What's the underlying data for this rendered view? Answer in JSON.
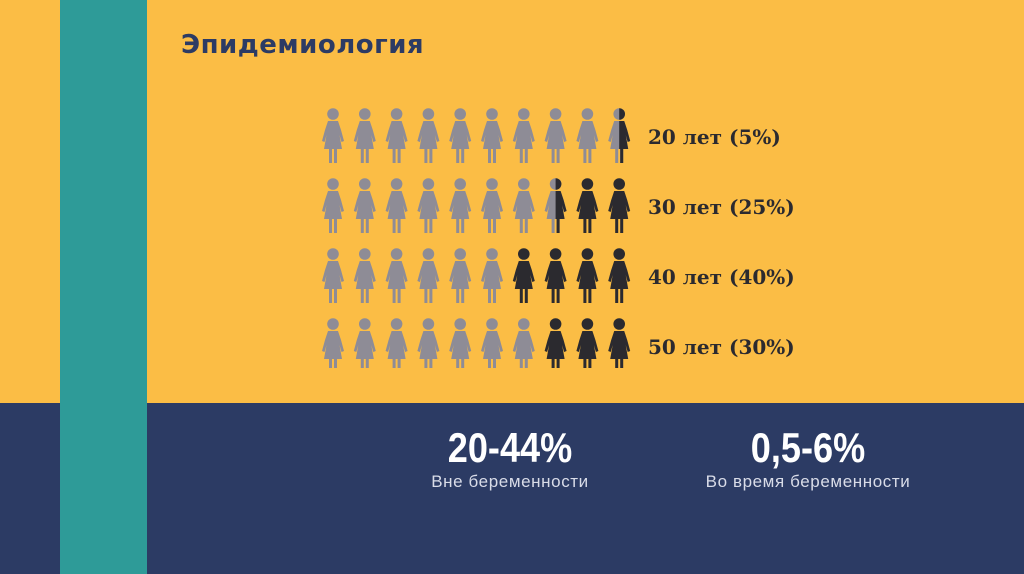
{
  "title": "Эпидемиология",
  "colors": {
    "background": "#fbbd45",
    "bottom_band": "#2c3b64",
    "accent_stripe": "#2e9b98",
    "title": "#2c3b64",
    "figure_gray": "#8e8c96",
    "figure_dark": "#2b2a2f",
    "row_label": "#2b2a2f"
  },
  "chart_data": {
    "type": "pictogram",
    "icon": "female-figure-icon",
    "icons_per_row": 10,
    "categories": [
      "20 лет",
      "30 лет",
      "40 лет",
      "50 лет"
    ],
    "values": [
      5,
      25,
      40,
      30
    ],
    "unit": "%",
    "row_labels": [
      "20 лет (5%)",
      "30 лет (25%)",
      "40 лет (40%)",
      "50 лет (30%)"
    ]
  },
  "stats": [
    {
      "value": "20-44%",
      "label": "Вне беременности"
    },
    {
      "value": "0,5-6%",
      "label": "Во время беременности"
    }
  ]
}
